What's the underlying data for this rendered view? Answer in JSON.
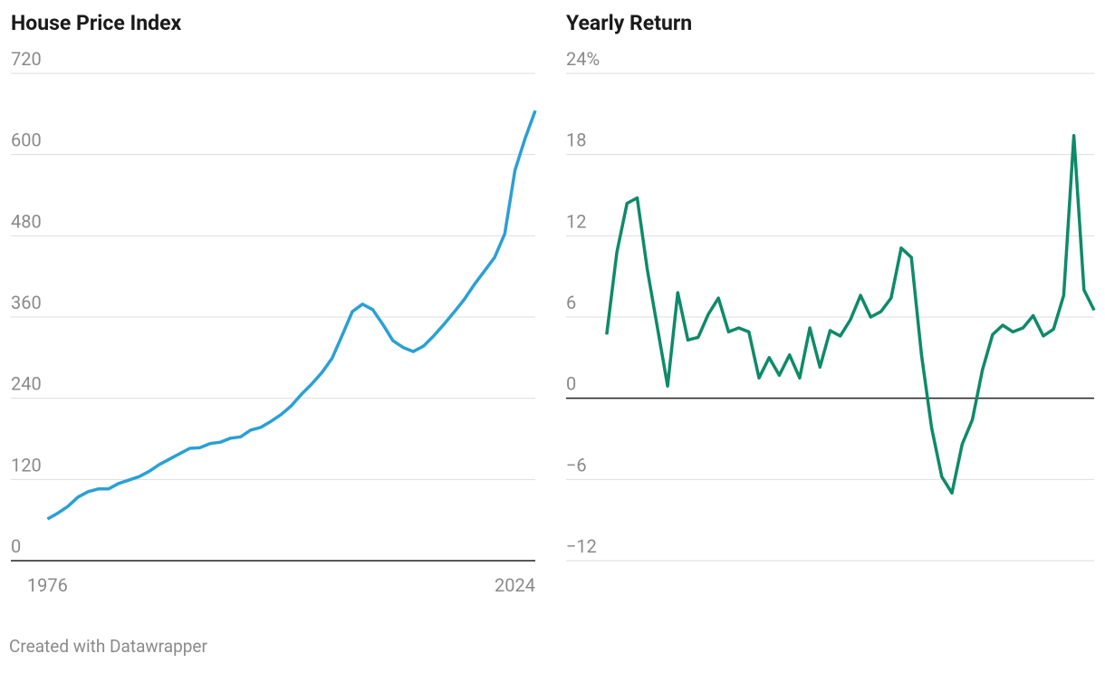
{
  "chart_data": [
    {
      "type": "line",
      "title": "House Price Index",
      "x": [
        1976,
        1977,
        1978,
        1979,
        1980,
        1981,
        1982,
        1983,
        1984,
        1985,
        1986,
        1987,
        1988,
        1989,
        1990,
        1991,
        1992,
        1993,
        1994,
        1995,
        1996,
        1997,
        1998,
        1999,
        2000,
        2001,
        2002,
        2003,
        2004,
        2005,
        2006,
        2007,
        2008,
        2009,
        2010,
        2011,
        2012,
        2013,
        2014,
        2015,
        2016,
        2017,
        2018,
        2019,
        2020,
        2021,
        2022,
        2023,
        2024
      ],
      "series": [
        {
          "name": "House Price Index",
          "color": "#2aa0d4",
          "values": [
            61.6,
            70,
            80,
            94,
            102,
            106,
            106,
            114,
            119,
            124,
            132,
            142,
            150,
            158,
            166,
            167,
            173,
            175,
            181,
            183,
            193,
            197,
            206,
            216,
            229,
            246,
            261,
            278,
            299,
            333,
            368,
            379,
            371,
            349,
            325,
            315,
            309,
            317,
            332,
            349,
            367,
            386,
            408,
            428,
            448,
            483,
            577,
            624,
            665
          ]
        }
      ],
      "xlim": [
        1972.4,
        2024
      ],
      "xticks": [
        1976,
        2024
      ],
      "ylim": [
        0,
        720
      ],
      "yticks": [
        0,
        120,
        240,
        360,
        480,
        600,
        720
      ],
      "grid": true
    },
    {
      "type": "line",
      "title": "Yearly Return",
      "x": [
        1976,
        1977,
        1978,
        1979,
        1980,
        1981,
        1982,
        1983,
        1984,
        1985,
        1986,
        1987,
        1988,
        1989,
        1990,
        1991,
        1992,
        1993,
        1994,
        1995,
        1996,
        1997,
        1998,
        1999,
        2000,
        2001,
        2002,
        2003,
        2004,
        2005,
        2006,
        2007,
        2008,
        2009,
        2010,
        2011,
        2012,
        2013,
        2014,
        2015,
        2016,
        2017,
        2018,
        2019,
        2020,
        2021,
        2022,
        2023,
        2024
      ],
      "series": [
        {
          "name": "Yearly Return",
          "color": "#0e8a6a",
          "values": [
            4.7,
            10.8,
            14.4,
            14.8,
            9.5,
            5.2,
            0.9,
            7.8,
            4.3,
            4.5,
            6.2,
            7.4,
            4.9,
            5.2,
            4.9,
            1.5,
            3.0,
            1.7,
            3.2,
            1.5,
            5.2,
            2.3,
            5.0,
            4.6,
            5.8,
            7.6,
            6.0,
            6.4,
            7.4,
            11.1,
            10.4,
            3.2,
            -2.2,
            -5.8,
            -7.0,
            -3.4,
            -1.6,
            2.1,
            4.7,
            5.4,
            4.9,
            5.2,
            6.1,
            4.6,
            5.1,
            7.6,
            19.4,
            8.0,
            6.5
          ]
        }
      ],
      "xlim": [
        1972,
        2024
      ],
      "ylim": [
        -12,
        24
      ],
      "yticks": [
        {
          "value": -12,
          "label": "−12"
        },
        {
          "value": -6,
          "label": "−6"
        },
        0,
        6,
        12,
        18,
        {
          "value": 24,
          "label": "24%"
        }
      ],
      "grid": true
    }
  ],
  "credit": "Created with Datawrapper"
}
